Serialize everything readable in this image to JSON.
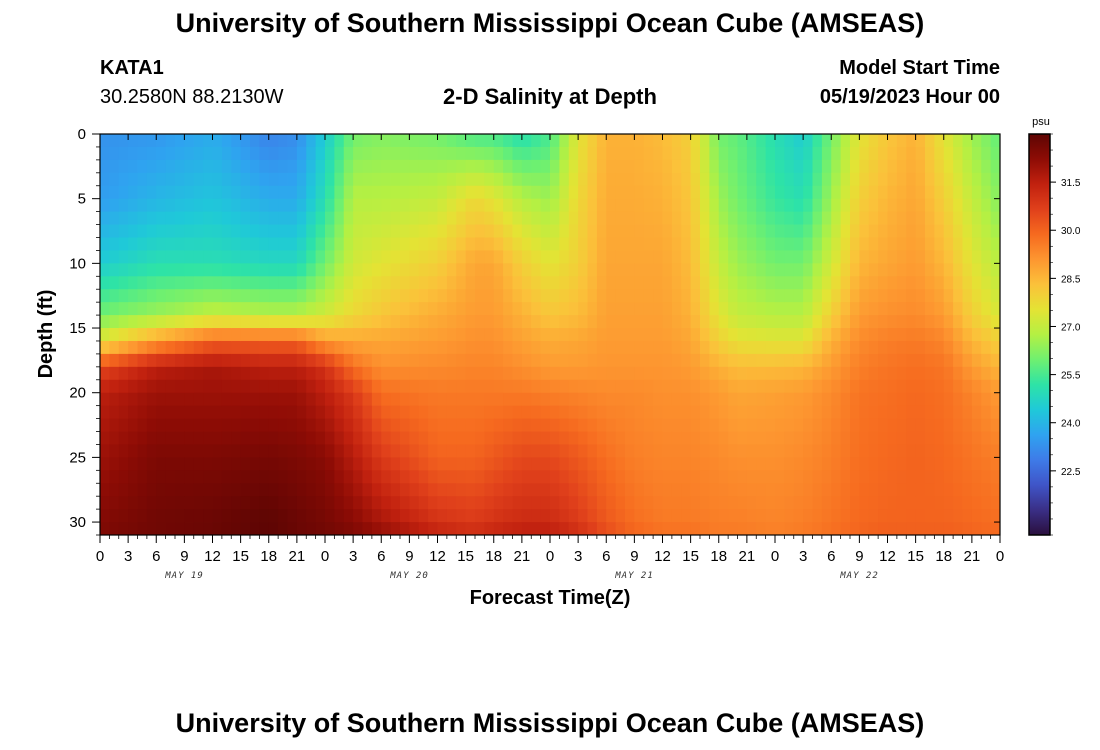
{
  "header": {
    "title": "University of Southern Mississippi Ocean Cube (AMSEAS)",
    "station": "KATA1",
    "coords": "30.2580N  88.2130W",
    "subtitle": "2-D Salinity at Depth",
    "model_start_label": "Model Start Time",
    "model_start_value": "05/19/2023 Hour 00"
  },
  "footer": {
    "title": "University of Southern Mississippi Ocean Cube (AMSEAS)"
  },
  "chart_data": {
    "type": "heatmap",
    "title": "2-D Salinity at Depth",
    "xlabel": "Forecast Time(Z)",
    "ylabel": "Depth (ft)",
    "x_range_hours": [
      0,
      96
    ],
    "ylim": [
      0,
      31
    ],
    "y_inverted": true,
    "x_tick_step_hours": 3,
    "x_tick_labels": [
      "0",
      "3",
      "6",
      "9",
      "12",
      "15",
      "18",
      "21",
      "0",
      "3",
      "6",
      "9",
      "12",
      "15",
      "18",
      "21",
      "0",
      "3",
      "6",
      "9",
      "12",
      "15",
      "18",
      "21",
      "0",
      "3",
      "6",
      "9",
      "12",
      "15",
      "18",
      "21",
      "0"
    ],
    "day_labels": [
      {
        "label": "MAY 19",
        "hour": 12
      },
      {
        "label": "MAY 20",
        "hour": 36
      },
      {
        "label": "MAY 21",
        "hour": 60
      },
      {
        "label": "MAY 22",
        "hour": 84
      }
    ],
    "y_ticks": [
      0,
      5,
      10,
      15,
      20,
      25,
      30
    ],
    "y_tick_labels": [
      "0",
      "5",
      "10",
      "15",
      "20",
      "25",
      "30"
    ],
    "colorbar": {
      "unit": "psu",
      "min": 20.5,
      "max": 33.0,
      "tick_values": [
        22.5,
        24.0,
        25.5,
        27.0,
        28.5,
        30.0,
        31.5
      ],
      "tick_labels": [
        "22.5",
        "24.0",
        "25.5",
        "27.0",
        "28.5",
        "30.0",
        "31.5"
      ],
      "colors": [
        "#2a0f3d",
        "#3a2f86",
        "#3f55c8",
        "#3e7be8",
        "#2fa3f0",
        "#1fc9d8",
        "#2ee3a6",
        "#6ff070",
        "#b4f043",
        "#e4e334",
        "#fbc13a",
        "#fd9630",
        "#f66a1f",
        "#e0401b",
        "#c1210f",
        "#8e0c05",
        "#5e0503"
      ]
    },
    "profiles_hours": [
      0,
      6,
      12,
      18,
      21,
      24,
      27,
      30,
      36,
      40,
      42,
      45,
      48,
      51,
      54,
      57,
      60,
      63,
      66,
      68,
      72,
      75,
      78,
      81,
      84,
      87,
      90,
      93,
      96
    ],
    "profiles_depth_ft": [
      0,
      5,
      10,
      14,
      16,
      18,
      20,
      25,
      30,
      31
    ],
    "profiles_salinity_psu": [
      [
        23.3,
        23.5,
        24.5,
        26.0,
        27.5,
        30.5,
        31.5,
        32.0,
        32.4,
        32.5
      ],
      [
        23.4,
        24.0,
        25.0,
        26.5,
        29.0,
        31.5,
        32.0,
        32.5,
        32.7,
        32.7
      ],
      [
        23.8,
        24.3,
        25.0,
        27.0,
        30.0,
        31.8,
        32.0,
        32.5,
        32.8,
        32.8
      ],
      [
        23.0,
        23.8,
        24.8,
        26.8,
        30.0,
        31.5,
        32.0,
        32.6,
        33.0,
        33.0
      ],
      [
        23.2,
        23.8,
        24.8,
        26.8,
        30.0,
        31.5,
        32.0,
        32.5,
        32.8,
        32.8
      ],
      [
        24.5,
        25.0,
        26.0,
        27.2,
        29.0,
        31.0,
        31.5,
        32.3,
        32.6,
        32.7
      ],
      [
        26.0,
        26.8,
        27.2,
        27.8,
        28.8,
        29.8,
        30.8,
        31.6,
        32.3,
        32.5
      ],
      [
        26.2,
        26.8,
        27.5,
        28.2,
        28.8,
        29.2,
        29.8,
        30.8,
        31.8,
        32.2
      ],
      [
        26.0,
        27.0,
        28.0,
        28.7,
        29.0,
        29.3,
        29.6,
        30.0,
        31.0,
        31.5
      ],
      [
        25.5,
        27.8,
        28.8,
        29.0,
        29.2,
        29.4,
        29.6,
        30.0,
        30.8,
        31.2
      ],
      [
        25.5,
        27.5,
        28.8,
        29.0,
        29.2,
        29.4,
        29.6,
        30.2,
        31.0,
        31.4
      ],
      [
        25.0,
        26.8,
        28.0,
        28.6,
        28.9,
        29.2,
        29.6,
        30.5,
        31.2,
        31.6
      ],
      [
        25.5,
        26.5,
        27.5,
        28.2,
        28.7,
        29.0,
        29.5,
        30.5,
        31.2,
        31.6
      ],
      [
        27.5,
        27.8,
        28.0,
        28.4,
        28.8,
        29.0,
        29.4,
        30.2,
        30.8,
        31.2
      ],
      [
        28.6,
        28.7,
        28.8,
        28.9,
        29.0,
        29.1,
        29.3,
        29.8,
        30.2,
        30.5
      ],
      [
        28.6,
        28.7,
        28.8,
        28.9,
        29.0,
        29.1,
        29.3,
        29.5,
        29.8,
        30.0
      ],
      [
        28.4,
        28.6,
        28.8,
        28.9,
        29.0,
        29.1,
        29.2,
        29.4,
        29.6,
        29.8
      ],
      [
        28.0,
        28.2,
        28.4,
        28.6,
        28.8,
        29.0,
        29.2,
        29.4,
        29.6,
        29.8
      ],
      [
        26.0,
        26.5,
        27.0,
        27.5,
        28.0,
        28.6,
        29.0,
        29.3,
        29.5,
        29.6
      ],
      [
        25.8,
        26.0,
        26.5,
        27.0,
        27.6,
        28.4,
        28.8,
        29.2,
        29.5,
        29.6
      ],
      [
        25.0,
        25.3,
        26.0,
        26.8,
        27.5,
        28.4,
        28.9,
        29.2,
        29.4,
        29.5
      ],
      [
        24.5,
        25.0,
        26.0,
        26.8,
        27.5,
        28.5,
        29.0,
        29.3,
        29.5,
        29.6
      ],
      [
        26.0,
        26.5,
        27.2,
        28.0,
        28.6,
        29.0,
        29.3,
        29.5,
        29.7,
        29.8
      ],
      [
        27.5,
        28.0,
        28.5,
        29.0,
        29.3,
        29.5,
        29.7,
        29.8,
        29.9,
        30.0
      ],
      [
        28.2,
        28.5,
        28.8,
        29.2,
        29.5,
        29.7,
        29.8,
        29.9,
        30.0,
        30.1
      ],
      [
        28.6,
        28.8,
        29.0,
        29.3,
        29.6,
        29.8,
        29.9,
        30.0,
        30.0,
        30.1
      ],
      [
        27.5,
        28.0,
        28.5,
        29.0,
        29.4,
        29.7,
        29.8,
        29.9,
        30.0,
        30.1
      ],
      [
        26.5,
        27.0,
        27.5,
        28.0,
        28.5,
        29.0,
        29.4,
        29.7,
        29.9,
        30.0
      ],
      [
        25.8,
        26.2,
        26.8,
        27.3,
        28.0,
        28.5,
        29.0,
        29.5,
        29.8,
        29.9
      ]
    ]
  }
}
